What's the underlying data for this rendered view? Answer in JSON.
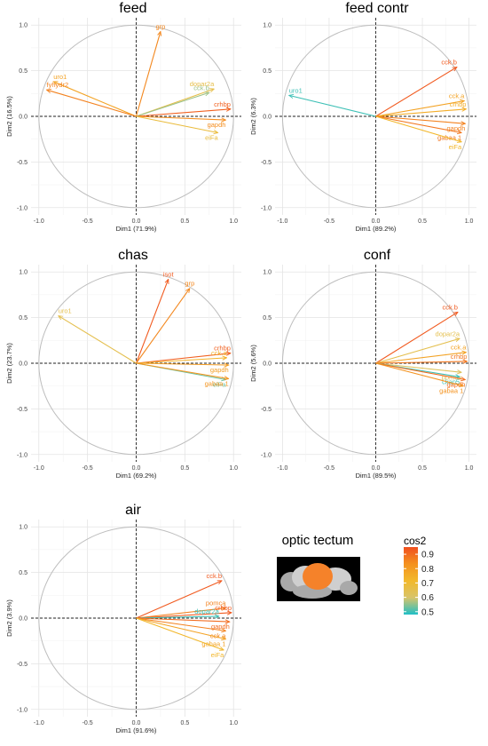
{
  "chart_data": [
    {
      "type": "scatter",
      "title": "feed",
      "xlabel": "Dim1 (71.9%)",
      "ylabel": "Dim2 (16.5%)",
      "xlim": [
        -1.0,
        1.0
      ],
      "ylim": [
        -1.0,
        1.0
      ],
      "grid": true,
      "variables": [
        {
          "name": "grp",
          "x": 0.25,
          "y": 0.93,
          "cos2": 0.85
        },
        {
          "name": "uro1",
          "x": -0.85,
          "y": 0.38,
          "cos2": 0.78
        },
        {
          "name": "fyhydr2",
          "x": -0.92,
          "y": 0.29,
          "cos2": 0.86
        },
        {
          "name": "dopar2a",
          "x": 0.8,
          "y": 0.3,
          "cos2": 0.66
        },
        {
          "name": "cck.b",
          "x": 0.75,
          "y": 0.26,
          "cos2": 0.56
        },
        {
          "name": "crhbp",
          "x": 0.97,
          "y": 0.08,
          "cos2": 0.92
        },
        {
          "name": "gapdh",
          "x": 0.92,
          "y": -0.04,
          "cos2": 0.84
        },
        {
          "name": "eiFa",
          "x": 0.84,
          "y": -0.18,
          "cos2": 0.68
        }
      ]
    },
    {
      "type": "scatter",
      "title": "feed contr",
      "xlabel": "Dim1 (89.2%)",
      "ylabel": "Dim2 (6.3%)",
      "xlim": [
        -1.0,
        1.0
      ],
      "ylim": [
        -1.0,
        1.0
      ],
      "grid": true,
      "variables": [
        {
          "name": "cck.b",
          "x": 0.87,
          "y": 0.54,
          "cos2": 0.93
        },
        {
          "name": "uro1",
          "x": -0.93,
          "y": 0.23,
          "cos2": 0.5
        },
        {
          "name": "cck.a",
          "x": 0.95,
          "y": 0.17,
          "cos2": 0.78
        },
        {
          "name": "crhbp",
          "x": 0.97,
          "y": 0.08,
          "cos2": 0.75
        },
        {
          "name": "gapdh",
          "x": 0.96,
          "y": -0.08,
          "cos2": 0.86
        },
        {
          "name": "gabaa 1",
          "x": 0.92,
          "y": -0.18,
          "cos2": 0.88
        },
        {
          "name": "eiFa",
          "x": 0.92,
          "y": -0.28,
          "cos2": 0.72
        }
      ]
    },
    {
      "type": "scatter",
      "title": "chas",
      "xlabel": "Dim1 (69.2%)",
      "ylabel": "Dim2 (23.7%)",
      "xlim": [
        -1.0,
        1.0
      ],
      "ylim": [
        -1.0,
        1.0
      ],
      "grid": true,
      "variables": [
        {
          "name": "isot",
          "x": 0.33,
          "y": 0.92,
          "cos2": 0.93
        },
        {
          "name": "grp",
          "x": 0.55,
          "y": 0.82,
          "cos2": 0.85
        },
        {
          "name": "uro1",
          "x": -0.8,
          "y": 0.52,
          "cos2": 0.65
        },
        {
          "name": "crhbp",
          "x": 0.97,
          "y": 0.11,
          "cos2": 0.92
        },
        {
          "name": "cck.a",
          "x": 0.93,
          "y": 0.06,
          "cos2": 0.74
        },
        {
          "name": "gapdh",
          "x": 0.95,
          "y": -0.02,
          "cos2": 0.8
        },
        {
          "name": "eiFa",
          "x": 0.92,
          "y": -0.18,
          "cos2": 0.53
        },
        {
          "name": "gabaa 1",
          "x": 0.95,
          "y": -0.17,
          "cos2": 0.82
        }
      ]
    },
    {
      "type": "scatter",
      "title": "conf",
      "xlabel": "Dim1 (89.5%)",
      "ylabel": "Dim2 (5.6%)",
      "xlim": [
        -1.0,
        1.0
      ],
      "ylim": [
        -1.0,
        1.0
      ],
      "grid": true,
      "variables": [
        {
          "name": "cck.b",
          "x": 0.88,
          "y": 0.56,
          "cos2": 0.93
        },
        {
          "name": "dopar2a",
          "x": 0.9,
          "y": 0.27,
          "cos2": 0.65
        },
        {
          "name": "cck.a",
          "x": 0.97,
          "y": 0.12,
          "cos2": 0.78
        },
        {
          "name": "crhbp",
          "x": 0.98,
          "y": 0.02,
          "cos2": 0.88
        },
        {
          "name": "pomca",
          "x": 0.92,
          "y": -0.1,
          "cos2": 0.62
        },
        {
          "name": "ckap5",
          "x": 0.9,
          "y": -0.15,
          "cos2": 0.5
        },
        {
          "name": "gapdh",
          "x": 0.96,
          "y": -0.18,
          "cos2": 0.9
        },
        {
          "name": "gabaa 1",
          "x": 0.94,
          "y": -0.25,
          "cos2": 0.83
        }
      ]
    },
    {
      "type": "scatter",
      "title": "air",
      "xlabel": "Dim1 (91.6%)",
      "ylabel": "Dim2 (3.9%)",
      "xlim": [
        -1.0,
        1.0
      ],
      "ylim": [
        -1.0,
        1.0
      ],
      "grid": true,
      "variables": [
        {
          "name": "cck.b",
          "x": 0.88,
          "y": 0.41,
          "cos2": 0.93
        },
        {
          "name": "pomca",
          "x": 0.92,
          "y": 0.11,
          "cos2": 0.86
        },
        {
          "name": "crhbp",
          "x": 0.98,
          "y": 0.06,
          "cos2": 0.93
        },
        {
          "name": "dopar2a",
          "x": 0.85,
          "y": 0.02,
          "cos2": 0.5
        },
        {
          "name": "gapdh",
          "x": 0.96,
          "y": -0.04,
          "cos2": 0.9
        },
        {
          "name": "cck.a",
          "x": 0.92,
          "y": -0.14,
          "cos2": 0.86
        },
        {
          "name": "gabaa 1",
          "x": 0.92,
          "y": -0.23,
          "cos2": 0.78
        },
        {
          "name": "eiFa",
          "x": 0.9,
          "y": -0.35,
          "cos2": 0.72
        }
      ]
    }
  ],
  "legend": {
    "title": "cos2",
    "ticks": [
      "0.9",
      "0.8",
      "0.7",
      "0.6",
      "0.5"
    ],
    "tick_values": [
      0.9,
      0.8,
      0.7,
      0.6,
      0.5
    ],
    "range": [
      0.48,
      0.95
    ],
    "colors": [
      "#1fbfc6",
      "#d8c46a",
      "#f2b92c",
      "#f4921f",
      "#f04f1f"
    ]
  },
  "brain_image": {
    "title": "optic tectum",
    "highlight_color": "#f5822a"
  }
}
